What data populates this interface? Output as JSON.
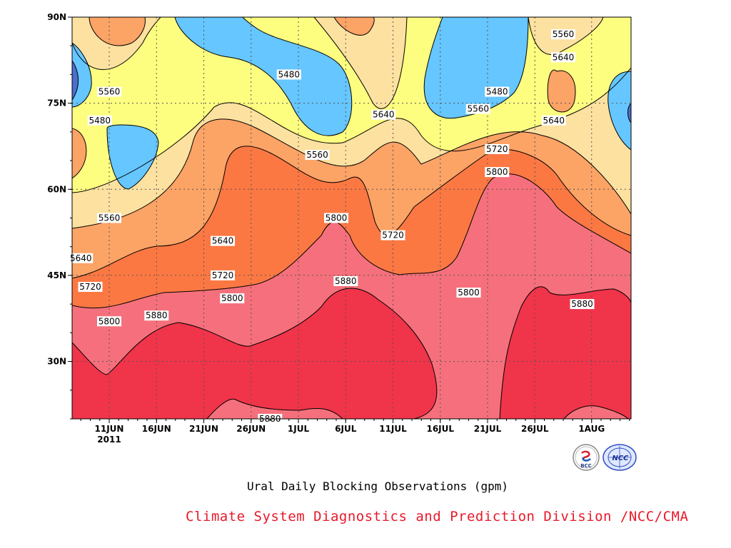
{
  "chart_data": {
    "type": "heatmap",
    "title": "Ural Daily Blocking Observations (gpm)",
    "xlabel": "",
    "ylabel": "",
    "year_label": "2011",
    "x_ticks": [
      "11JUN",
      "16JUN",
      "21JUN",
      "26JUN",
      "1JUL",
      "6JUL",
      "11JUL",
      "16JUL",
      "21JUL",
      "26JUL",
      "1AUG"
    ],
    "y_ticks": [
      "30N",
      "45N",
      "60N",
      "75N",
      "90N"
    ],
    "ylim": [
      20,
      90
    ],
    "contour_levels": [
      5480,
      5560,
      5640,
      5720,
      5800,
      5880
    ],
    "level_colors": {
      "below_5480": "#4a6fd0",
      "5480_5560": "#66c6ff",
      "5560_5640": "#fdfd80",
      "5640_5720": "#fde1a0",
      "5720_5800": "#fca366",
      "5800_5880": "#fc7843",
      "5880_5960": "#f5707c",
      "above_5960": "#f0344a"
    },
    "contour_labels": [
      {
        "text": "5480",
        "date": "30JUN",
        "lat": 80
      },
      {
        "text": "5480",
        "date": "10JUN",
        "lat": 72
      },
      {
        "text": "5480",
        "date": "22JUL",
        "lat": 77
      },
      {
        "text": "5560",
        "date": "11JUN",
        "lat": 77
      },
      {
        "text": "5560",
        "date": "3JUL",
        "lat": 66
      },
      {
        "text": "5560",
        "date": "20JUL",
        "lat": 74
      },
      {
        "text": "5560",
        "date": "29JUL",
        "lat": 87
      },
      {
        "text": "5560",
        "date": "11JUN",
        "lat": 55
      },
      {
        "text": "5640",
        "date": "10JUL",
        "lat": 73
      },
      {
        "text": "5640",
        "date": "29JUL",
        "lat": 83
      },
      {
        "text": "5640",
        "date": "28JUL",
        "lat": 72
      },
      {
        "text": "5640",
        "date": "23JUN",
        "lat": 51
      },
      {
        "text": "5640",
        "date": "8JUN",
        "lat": 48
      },
      {
        "text": "5720",
        "date": "22JUL",
        "lat": 67
      },
      {
        "text": "5720",
        "date": "11JUL",
        "lat": 52
      },
      {
        "text": "5720",
        "date": "23JUN",
        "lat": 45
      },
      {
        "text": "5720",
        "date": "9JUN",
        "lat": 43
      },
      {
        "text": "5800",
        "date": "22JUL",
        "lat": 63
      },
      {
        "text": "5800",
        "date": "5JUL",
        "lat": 55
      },
      {
        "text": "5800",
        "date": "24JUN",
        "lat": 41
      },
      {
        "text": "5800",
        "date": "11JUN",
        "lat": 37
      },
      {
        "text": "5800",
        "date": "19JUL",
        "lat": 42
      },
      {
        "text": "5880",
        "date": "16JUN",
        "lat": 38
      },
      {
        "text": "5880",
        "date": "6JUL",
        "lat": 44
      },
      {
        "text": "5880",
        "date": "31JUL",
        "lat": 40
      },
      {
        "text": "5880",
        "date": "28JUN",
        "lat": 20
      }
    ]
  },
  "caption": "Ural Daily Blocking Observations (gpm)",
  "credit": "Climate System Diagnostics and Prediction Division /NCC/CMA",
  "logos": {
    "bcc_text": "BCC",
    "ncc_text": "NCC"
  },
  "colors": {
    "contour_line": "#000000",
    "grid_line": "#555555",
    "credit_text": "#e8182a",
    "frame": "#000000"
  }
}
